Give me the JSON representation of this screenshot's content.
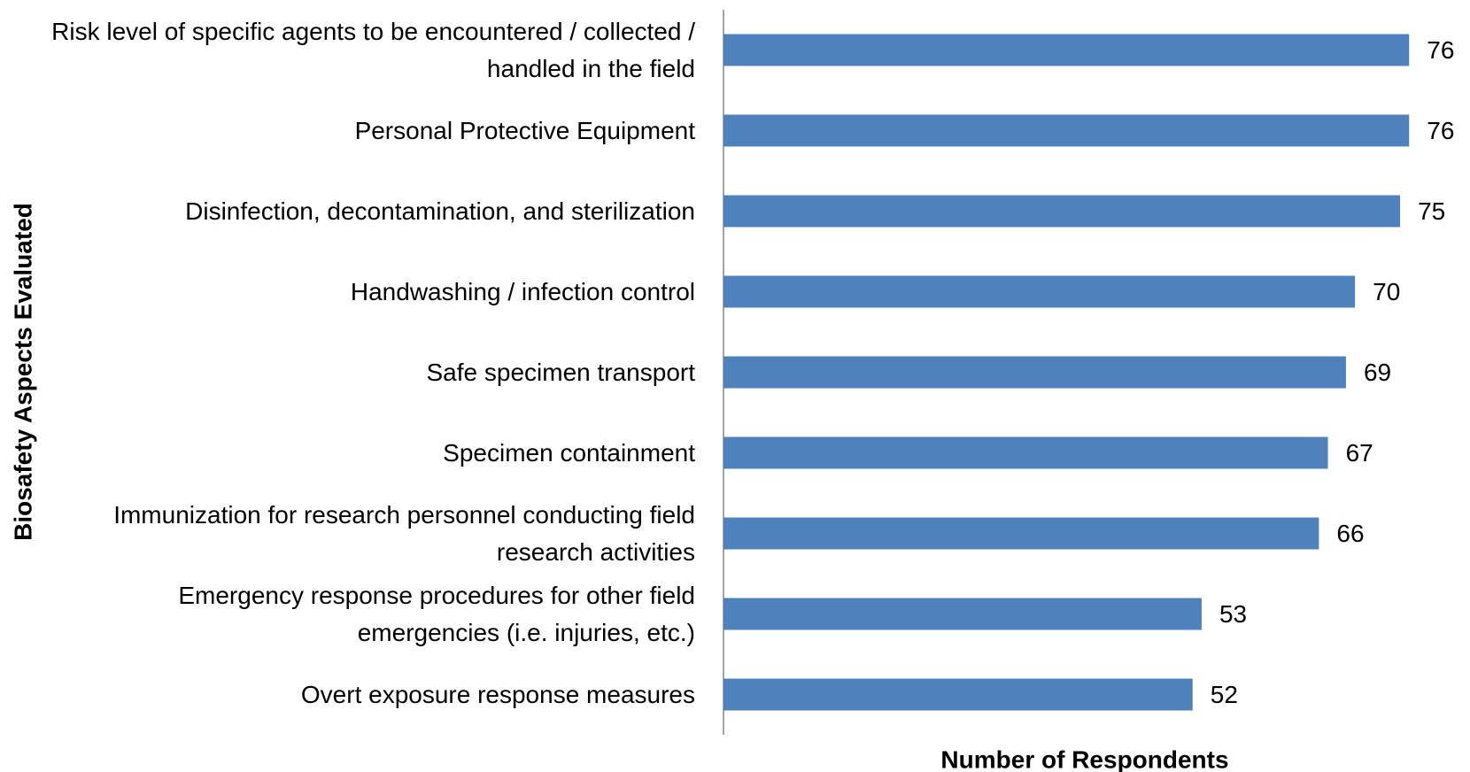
{
  "chart_data": {
    "type": "barh",
    "categories": [
      "Risk level of specific agents to be encountered / collected / handled in the field",
      "Personal Protective Equipment",
      "Disinfection, decontamination, and sterilization",
      "Handwashing / infection control",
      "Safe specimen transport",
      "Specimen containment",
      "Immunization for research personnel conducting field research activities",
      "Emergency response procedures for other field emergencies (i.e. injuries, etc.)",
      "Overt exposure response measures"
    ],
    "values": [
      76,
      76,
      75,
      70,
      69,
      67,
      66,
      53,
      52
    ],
    "color": "#4f81bd",
    "xlim": [
      0,
      80
    ],
    "xlabel": "Number of Respondents",
    "ylabel": "Biosafety Aspects Evaluated"
  }
}
